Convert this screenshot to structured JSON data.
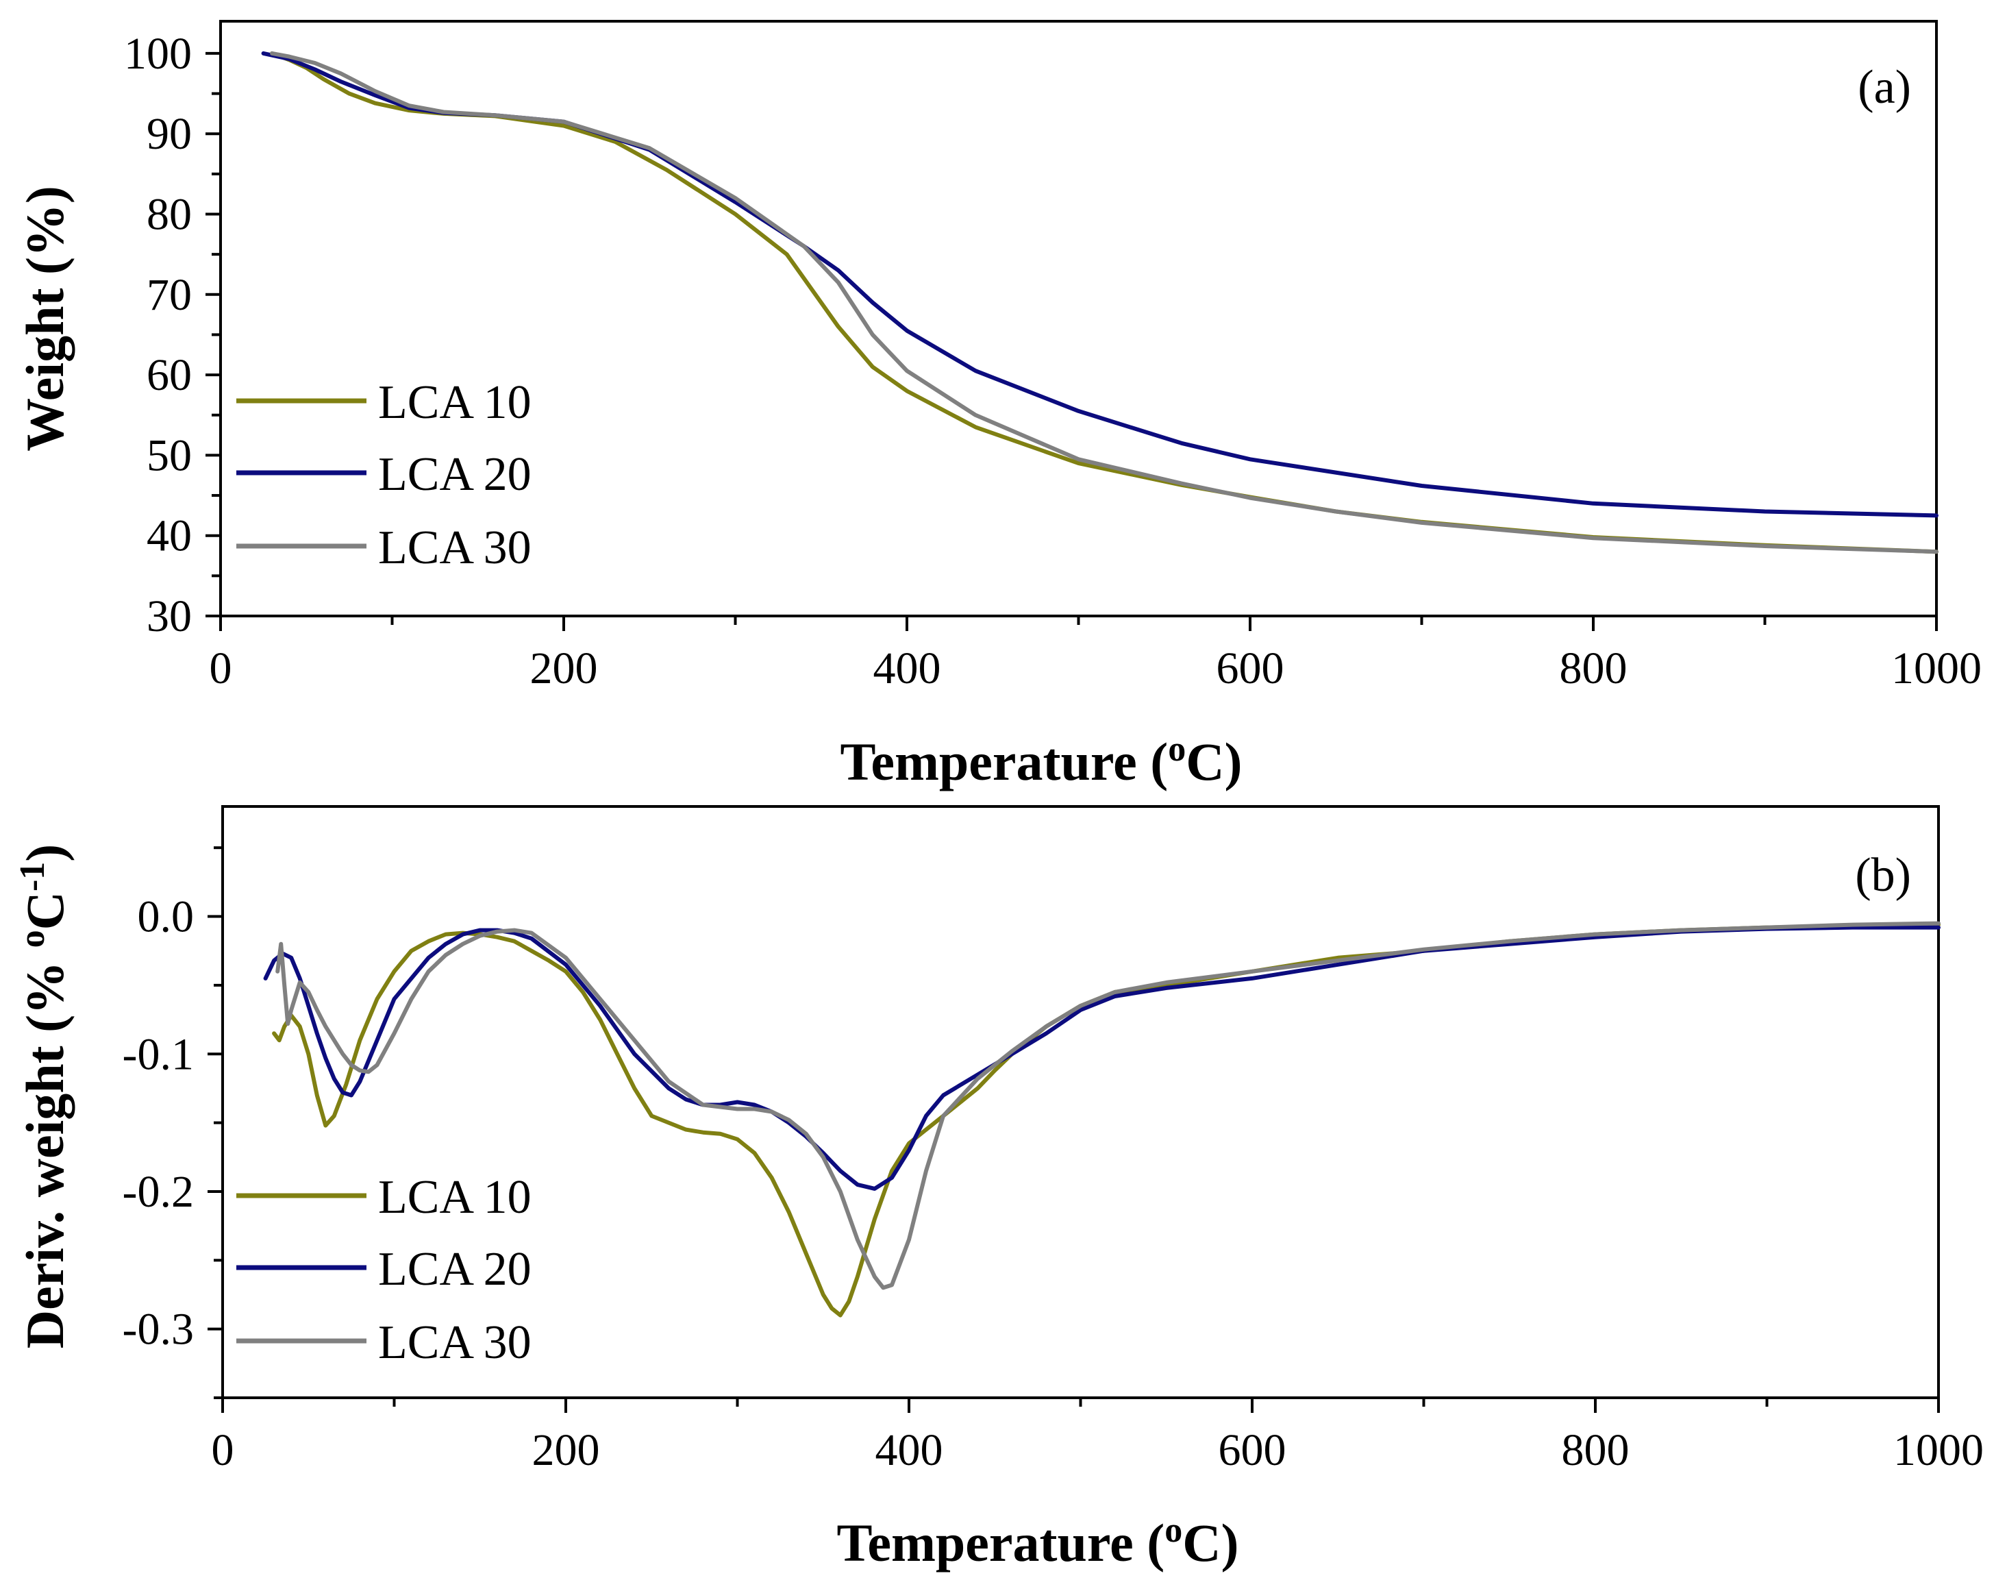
{
  "chart_data": [
    {
      "type": "line",
      "panel_label": "(a)",
      "xlabel": {
        "main": "Temperature (",
        "sup": "o",
        "tail": "C)"
      },
      "ylabel": "Weight (%)",
      "xlim": [
        0,
        1000
      ],
      "ylim": [
        30,
        104
      ],
      "xticks": [
        0,
        200,
        400,
        600,
        800,
        1000
      ],
      "xtick_labels": [
        "0",
        "200",
        "400",
        "600",
        "800",
        "1000"
      ],
      "yticks": [
        30,
        40,
        50,
        60,
        70,
        80,
        90,
        100
      ],
      "ytick_labels": [
        "30",
        "40",
        "50",
        "60",
        "70",
        "80",
        "90",
        "100"
      ],
      "legend_position": "left",
      "series": [
        {
          "name": "LCA 10",
          "color": "#808012",
          "x": [
            30,
            40,
            50,
            60,
            75,
            90,
            110,
            130,
            160,
            200,
            230,
            260,
            300,
            330,
            360,
            380,
            400,
            440,
            500,
            560,
            600,
            650,
            700,
            800,
            900,
            1000
          ],
          "y": [
            100,
            99.2,
            98.2,
            96.8,
            95.0,
            93.8,
            92.9,
            92.5,
            92.2,
            91.0,
            89.0,
            85.5,
            80.0,
            75.0,
            66.0,
            61.0,
            58.0,
            53.5,
            49.0,
            46.3,
            44.8,
            43.0,
            41.7,
            39.8,
            38.8,
            38.0
          ]
        },
        {
          "name": "LCA 20",
          "color": "#0c0c7e",
          "x": [
            25,
            40,
            55,
            70,
            90,
            110,
            130,
            160,
            200,
            250,
            300,
            340,
            360,
            380,
            400,
            440,
            500,
            560,
            600,
            700,
            800,
            900,
            1000
          ],
          "y": [
            100,
            99.3,
            98.0,
            96.5,
            94.8,
            93.2,
            92.6,
            92.3,
            91.5,
            88.0,
            81.5,
            76.0,
            73.0,
            69.0,
            65.5,
            60.5,
            55.5,
            51.5,
            49.5,
            46.2,
            44.0,
            43.0,
            42.5
          ]
        },
        {
          "name": "LCA 30",
          "color": "#808080",
          "x": [
            30,
            40,
            55,
            70,
            90,
            110,
            130,
            160,
            200,
            250,
            300,
            340,
            360,
            380,
            400,
            440,
            500,
            560,
            600,
            650,
            700,
            800,
            900,
            1000
          ],
          "y": [
            100,
            99.6,
            98.8,
            97.5,
            95.3,
            93.5,
            92.7,
            92.3,
            91.5,
            88.2,
            82.0,
            76.0,
            71.5,
            65.0,
            60.5,
            55.0,
            49.5,
            46.5,
            44.7,
            43.0,
            41.6,
            39.7,
            38.7,
            38.0
          ]
        }
      ]
    },
    {
      "type": "line",
      "panel_label": "(b)",
      "xlabel": {
        "main": "Temperature (",
        "sup": "o",
        "tail": "C)"
      },
      "ylabel": {
        "main": "Deriv.  weight (% ",
        "sup1": "o",
        "mid": "C",
        "sup2": "-1",
        "tail": ")"
      },
      "xlim": [
        0,
        1000
      ],
      "ylim": [
        -0.35,
        0.08
      ],
      "xticks": [
        0,
        200,
        400,
        600,
        800,
        1000
      ],
      "xtick_labels": [
        "0",
        "200",
        "400",
        "600",
        "800",
        "1000"
      ],
      "yticks": [
        -0.3,
        -0.2,
        -0.1,
        0.0
      ],
      "ytick_labels": [
        "-0.3",
        "-0.2",
        "-0.1",
        "0.0"
      ],
      "legend_position": "bottom-left",
      "series": [
        {
          "name": "LCA 10",
          "color": "#808012",
          "x": [
            30,
            33,
            36,
            40,
            45,
            50,
            55,
            60,
            65,
            72,
            80,
            90,
            100,
            110,
            120,
            130,
            140,
            150,
            160,
            170,
            180,
            190,
            200,
            210,
            220,
            230,
            240,
            250,
            260,
            270,
            280,
            290,
            300,
            310,
            320,
            330,
            340,
            350,
            355,
            360,
            365,
            370,
            380,
            390,
            400,
            410,
            420,
            430,
            440,
            450,
            460,
            480,
            500,
            520,
            550,
            600,
            650,
            700,
            750,
            800,
            850,
            900,
            950,
            1000
          ],
          "y": [
            -0.085,
            -0.09,
            -0.08,
            -0.072,
            -0.08,
            -0.1,
            -0.13,
            -0.152,
            -0.145,
            -0.122,
            -0.09,
            -0.06,
            -0.04,
            -0.025,
            -0.018,
            -0.013,
            -0.012,
            -0.013,
            -0.015,
            -0.018,
            -0.025,
            -0.032,
            -0.04,
            -0.055,
            -0.075,
            -0.1,
            -0.125,
            -0.145,
            -0.15,
            -0.155,
            -0.157,
            -0.158,
            -0.162,
            -0.172,
            -0.19,
            -0.215,
            -0.245,
            -0.275,
            -0.285,
            -0.29,
            -0.28,
            -0.262,
            -0.22,
            -0.185,
            -0.165,
            -0.155,
            -0.145,
            -0.135,
            -0.125,
            -0.112,
            -0.1,
            -0.08,
            -0.065,
            -0.055,
            -0.05,
            -0.04,
            -0.03,
            -0.025,
            -0.018,
            -0.013,
            -0.01,
            -0.008,
            -0.007,
            -0.006
          ]
        },
        {
          "name": "LCA 20",
          "color": "#0c0c7e",
          "x": [
            25,
            30,
            35,
            40,
            45,
            50,
            55,
            60,
            65,
            70,
            75,
            80,
            90,
            100,
            110,
            120,
            130,
            140,
            150,
            160,
            170,
            180,
            200,
            220,
            240,
            260,
            270,
            280,
            290,
            300,
            310,
            320,
            330,
            340,
            350,
            360,
            370,
            380,
            390,
            400,
            410,
            420,
            440,
            460,
            480,
            500,
            520,
            550,
            600,
            650,
            700,
            750,
            800,
            850,
            900,
            950,
            1000
          ],
          "y": [
            -0.045,
            -0.032,
            -0.027,
            -0.03,
            -0.045,
            -0.065,
            -0.085,
            -0.103,
            -0.118,
            -0.128,
            -0.13,
            -0.12,
            -0.09,
            -0.06,
            -0.045,
            -0.03,
            -0.02,
            -0.013,
            -0.01,
            -0.01,
            -0.012,
            -0.016,
            -0.035,
            -0.065,
            -0.1,
            -0.125,
            -0.133,
            -0.137,
            -0.137,
            -0.135,
            -0.137,
            -0.142,
            -0.15,
            -0.16,
            -0.172,
            -0.185,
            -0.195,
            -0.198,
            -0.19,
            -0.17,
            -0.145,
            -0.13,
            -0.115,
            -0.1,
            -0.085,
            -0.068,
            -0.058,
            -0.052,
            -0.045,
            -0.035,
            -0.025,
            -0.02,
            -0.015,
            -0.011,
            -0.009,
            -0.008,
            -0.008
          ]
        },
        {
          "name": "LCA 30",
          "color": "#808080",
          "x": [
            32,
            34,
            36,
            38,
            40,
            45,
            50,
            55,
            60,
            65,
            70,
            75,
            80,
            85,
            90,
            100,
            110,
            120,
            130,
            140,
            150,
            160,
            170,
            180,
            200,
            220,
            240,
            260,
            280,
            300,
            310,
            320,
            330,
            340,
            350,
            360,
            370,
            380,
            385,
            390,
            400,
            410,
            420,
            440,
            460,
            480,
            500,
            520,
            550,
            600,
            650,
            700,
            750,
            800,
            850,
            900,
            950,
            1000
          ],
          "y": [
            -0.04,
            -0.02,
            -0.05,
            -0.078,
            -0.068,
            -0.048,
            -0.055,
            -0.068,
            -0.08,
            -0.09,
            -0.1,
            -0.108,
            -0.112,
            -0.113,
            -0.108,
            -0.085,
            -0.06,
            -0.04,
            -0.028,
            -0.02,
            -0.014,
            -0.011,
            -0.01,
            -0.012,
            -0.03,
            -0.06,
            -0.09,
            -0.12,
            -0.137,
            -0.14,
            -0.14,
            -0.142,
            -0.148,
            -0.158,
            -0.175,
            -0.2,
            -0.235,
            -0.262,
            -0.27,
            -0.268,
            -0.235,
            -0.185,
            -0.145,
            -0.118,
            -0.098,
            -0.08,
            -0.065,
            -0.055,
            -0.048,
            -0.04,
            -0.032,
            -0.024,
            -0.018,
            -0.013,
            -0.01,
            -0.008,
            -0.006,
            -0.005
          ]
        }
      ]
    }
  ]
}
